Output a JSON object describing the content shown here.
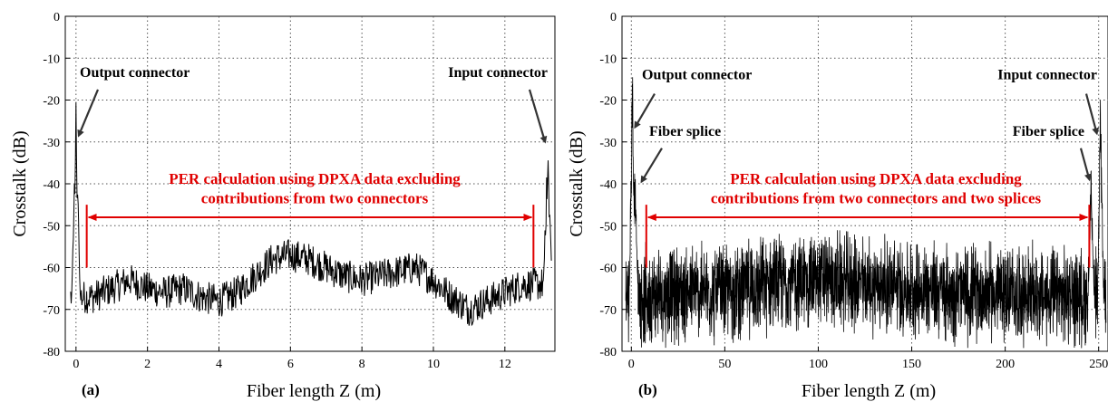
{
  "chart_data": [
    {
      "type": "line",
      "panel_label": "(a)",
      "xlabel": "Fiber length Z (m)",
      "ylabel": "Crosstalk (dB)",
      "xlim": [
        -0.3,
        13.4
      ],
      "ylim": [
        -80,
        0
      ],
      "xticks": [
        0,
        2,
        4,
        6,
        8,
        10,
        12
      ],
      "yticks": [
        0,
        -10,
        -20,
        -30,
        -40,
        -50,
        -60,
        -70,
        -80
      ],
      "grid": true,
      "line_color": "#000000",
      "annotations": {
        "left": "Output connector",
        "right": "Input connector",
        "red_line1": "PER calculation using DPXA data excluding",
        "red_line2": "contributions from two connectors"
      },
      "per_range": [
        0.3,
        12.8
      ],
      "peaks": [
        {
          "x": 0.0,
          "y": -21
        },
        {
          "x": 13.2,
          "y": -29
        }
      ],
      "series": [
        {
          "x": [
            0.5,
            1.0,
            1.5,
            2.0,
            2.5,
            3.0,
            3.5,
            4.0,
            4.5,
            5.0,
            5.5,
            6.0,
            6.5,
            7.0,
            7.5,
            8.0,
            8.5,
            9.0,
            9.5,
            10.0,
            10.5,
            11.0,
            11.5,
            12.0,
            12.5
          ],
          "y": [
            -67,
            -65,
            -63,
            -65,
            -66,
            -65,
            -67,
            -68,
            -66,
            -62,
            -58,
            -57,
            -58,
            -60,
            -62,
            -63,
            -62,
            -61,
            -60,
            -63,
            -67,
            -70,
            -68,
            -66,
            -64
          ]
        }
      ]
    },
    {
      "type": "line",
      "panel_label": "(b)",
      "xlabel": "Fiber length Z (m)",
      "ylabel": "Crosstalk (dB)",
      "xlim": [
        -5,
        255
      ],
      "ylim": [
        -80,
        0
      ],
      "xticks": [
        0,
        50,
        100,
        150,
        200,
        250
      ],
      "yticks": [
        0,
        -10,
        -20,
        -30,
        -40,
        -50,
        -60,
        -70,
        -80
      ],
      "grid": true,
      "line_color": "#000000",
      "annotations": {
        "left": "Output connector",
        "right": "Input connector",
        "left_splice": "Fiber splice",
        "right_splice": "Fiber splice",
        "red_line1": "PER calculation using DPXA data excluding",
        "red_line2": "contributions from two connectors and two splices"
      },
      "per_range": [
        8,
        245
      ],
      "peaks": [
        {
          "x": 0.5,
          "y": -12
        },
        {
          "x": 2,
          "y": -37
        },
        {
          "x": 246,
          "y": -38
        },
        {
          "x": 251,
          "y": -18
        }
      ],
      "series": [
        {
          "x": [
            10,
            25,
            50,
            75,
            100,
            125,
            150,
            175,
            200,
            225,
            240
          ],
          "y": [
            -67,
            -66,
            -66,
            -64,
            -63,
            -64,
            -65,
            -66,
            -66,
            -67,
            -67
          ]
        }
      ]
    }
  ]
}
